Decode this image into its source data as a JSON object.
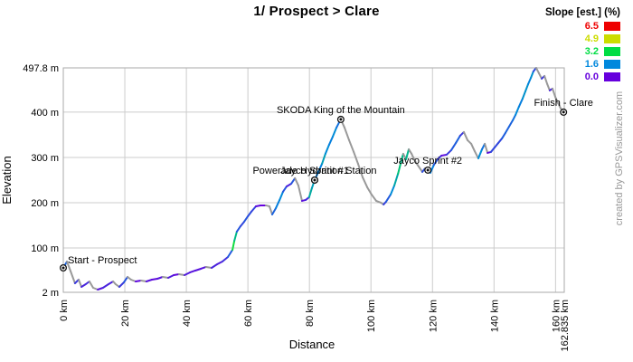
{
  "title": "1/ Prospect > Clare",
  "watermark": "created by GPSVisualizer.com",
  "axes": {
    "x_title": "Distance",
    "y_title": "Elevation",
    "x_ticks": [
      {
        "km": 0,
        "label": "0 km"
      },
      {
        "km": 20,
        "label": "20 km"
      },
      {
        "km": 40,
        "label": "40 km"
      },
      {
        "km": 60,
        "label": "60 km"
      },
      {
        "km": 80,
        "label": "80 km"
      },
      {
        "km": 100,
        "label": "100 km"
      },
      {
        "km": 120,
        "label": "120 km"
      },
      {
        "km": 140,
        "label": "140 km"
      },
      {
        "km": 160,
        "label": "160 km"
      },
      {
        "km": 162.835,
        "label": "162.835 km"
      }
    ],
    "y_ticks": [
      {
        "m": 2,
        "label": "2 m"
      },
      {
        "m": 100,
        "label": "100 m"
      },
      {
        "m": 200,
        "label": "200 m"
      },
      {
        "m": 300,
        "label": "300 m"
      },
      {
        "m": 400,
        "label": "400 m"
      },
      {
        "m": 497.8,
        "label": "497.8 m"
      }
    ]
  },
  "legend": {
    "title": "Slope [est.] (%)",
    "entries": [
      {
        "value": "6.5",
        "color": "#EE0000"
      },
      {
        "value": "4.9",
        "color": "#CCDD00"
      },
      {
        "value": "3.2",
        "color": "#00DD44"
      },
      {
        "value": "1.6",
        "color": "#0088DD"
      },
      {
        "value": "0.0",
        "color": "#6600DD"
      }
    ]
  },
  "colors": {
    "grid": "#CCCCCC",
    "border": "#AAAAAA",
    "downhill": "#999999",
    "annotation": "#000000",
    "watermark": "#999999"
  },
  "chart_data": {
    "type": "line",
    "title": "1/ Prospect > Clare",
    "xlabel": "Distance",
    "ylabel": "Elevation",
    "x_units": "km",
    "y_units": "m",
    "xlim": [
      0,
      162.835
    ],
    "ylim": [
      2,
      497.8
    ],
    "grid": true,
    "legend_position": "top-right",
    "color_by": "slope_percent",
    "slope_stops": [
      [
        0.0,
        "#6600DD"
      ],
      [
        1.6,
        "#0088DD"
      ],
      [
        3.2,
        "#00DD44"
      ],
      [
        4.9,
        "#CCDD00"
      ],
      [
        6.5,
        "#EE0000"
      ]
    ],
    "points": [
      [
        0,
        56
      ],
      [
        1.2,
        70
      ],
      [
        2.4,
        48
      ],
      [
        3.8,
        22
      ],
      [
        5,
        30
      ],
      [
        5.9,
        14
      ],
      [
        7.3,
        20
      ],
      [
        8.5,
        26
      ],
      [
        9.7,
        12
      ],
      [
        11.2,
        8
      ],
      [
        12.9,
        12
      ],
      [
        14.7,
        20
      ],
      [
        16.2,
        26
      ],
      [
        17,
        20
      ],
      [
        18.2,
        14
      ],
      [
        19.7,
        24
      ],
      [
        20.9,
        36
      ],
      [
        22,
        30
      ],
      [
        23.5,
        26
      ],
      [
        25.3,
        28
      ],
      [
        27,
        26
      ],
      [
        28.8,
        30
      ],
      [
        30.6,
        32
      ],
      [
        32.3,
        36
      ],
      [
        34.1,
        34
      ],
      [
        35.9,
        40
      ],
      [
        37.6,
        42
      ],
      [
        39.4,
        40
      ],
      [
        41.2,
        46
      ],
      [
        42.9,
        50
      ],
      [
        44.7,
        54
      ],
      [
        46.4,
        58
      ],
      [
        48.2,
        56
      ],
      [
        50,
        64
      ],
      [
        51.7,
        70
      ],
      [
        53.5,
        80
      ],
      [
        55,
        96
      ],
      [
        55.6,
        116
      ],
      [
        56.4,
        136
      ],
      [
        57.6,
        148
      ],
      [
        58.8,
        158
      ],
      [
        60,
        170
      ],
      [
        61.1,
        180
      ],
      [
        62.6,
        192
      ],
      [
        64.1,
        194
      ],
      [
        65.8,
        194
      ],
      [
        67,
        192
      ],
      [
        67.9,
        174
      ],
      [
        69.1,
        188
      ],
      [
        70.3,
        206
      ],
      [
        71.4,
        224
      ],
      [
        72.6,
        236
      ],
      [
        74.1,
        242
      ],
      [
        75.3,
        254
      ],
      [
        76.4,
        238
      ],
      [
        77.6,
        204
      ],
      [
        78.8,
        206
      ],
      [
        79.9,
        212
      ],
      [
        80.8,
        232
      ],
      [
        81.7,
        250
      ],
      [
        82.9,
        268
      ],
      [
        84.1,
        286
      ],
      [
        85.2,
        308
      ],
      [
        86.4,
        328
      ],
      [
        87.6,
        346
      ],
      [
        88.8,
        366
      ],
      [
        89.7,
        378
      ],
      [
        90.2,
        384
      ],
      [
        91.4,
        366
      ],
      [
        92.9,
        338
      ],
      [
        94.4,
        312
      ],
      [
        95.8,
        286
      ],
      [
        97.3,
        256
      ],
      [
        98.8,
        234
      ],
      [
        100.2,
        218
      ],
      [
        101.7,
        204
      ],
      [
        103.2,
        200
      ],
      [
        104.1,
        196
      ],
      [
        104.9,
        202
      ],
      [
        106.4,
        218
      ],
      [
        107.6,
        238
      ],
      [
        108.8,
        264
      ],
      [
        109.7,
        288
      ],
      [
        110.5,
        308
      ],
      [
        111.4,
        296
      ],
      [
        112.3,
        318
      ],
      [
        113.2,
        308
      ],
      [
        114.3,
        292
      ],
      [
        115.5,
        280
      ],
      [
        116.7,
        268
      ],
      [
        117.6,
        276
      ],
      [
        118.5,
        272
      ],
      [
        119.3,
        266
      ],
      [
        120.5,
        284
      ],
      [
        121.7,
        296
      ],
      [
        122.9,
        304
      ],
      [
        124.6,
        306
      ],
      [
        126.1,
        316
      ],
      [
        127.6,
        332
      ],
      [
        129,
        348
      ],
      [
        130.2,
        356
      ],
      [
        131.4,
        338
      ],
      [
        132.6,
        330
      ],
      [
        133.7,
        314
      ],
      [
        134.9,
        298
      ],
      [
        136.1,
        318
      ],
      [
        137,
        330
      ],
      [
        137.9,
        310
      ],
      [
        139,
        312
      ],
      [
        140.2,
        322
      ],
      [
        141.4,
        332
      ],
      [
        142.6,
        342
      ],
      [
        143.7,
        354
      ],
      [
        144.9,
        368
      ],
      [
        146.1,
        382
      ],
      [
        147,
        394
      ],
      [
        148.1,
        412
      ],
      [
        149.3,
        430
      ],
      [
        150.2,
        446
      ],
      [
        151.1,
        462
      ],
      [
        152,
        476
      ],
      [
        152.8,
        490
      ],
      [
        153.7,
        497.8
      ],
      [
        154.6,
        486
      ],
      [
        155.5,
        474
      ],
      [
        156.4,
        480
      ],
      [
        157.3,
        462
      ],
      [
        158.1,
        448
      ],
      [
        159,
        452
      ],
      [
        159.9,
        434
      ],
      [
        160.8,
        420
      ],
      [
        161.7,
        408
      ],
      [
        162.6,
        400
      ],
      [
        162.835,
        399
      ]
    ],
    "waypoints": [
      {
        "km": 0,
        "elev": 56,
        "label": "Start - Prospect",
        "label_align": "left"
      },
      {
        "km": 81.7,
        "elev": 250,
        "label": "Jayco Sprint #1",
        "label_align": "center"
      },
      {
        "km": 81.7,
        "elev": 250,
        "label": "Powerade Hydration Station",
        "label_align": "center"
      },
      {
        "km": 90.2,
        "elev": 384,
        "label": "SKODA King of the Mountain",
        "label_align": "center"
      },
      {
        "km": 118.5,
        "elev": 272,
        "label": "Jayco Sprint #2",
        "label_align": "center"
      },
      {
        "km": 162.6,
        "elev": 400,
        "label": "Finish - Clare",
        "label_align": "center"
      }
    ]
  }
}
